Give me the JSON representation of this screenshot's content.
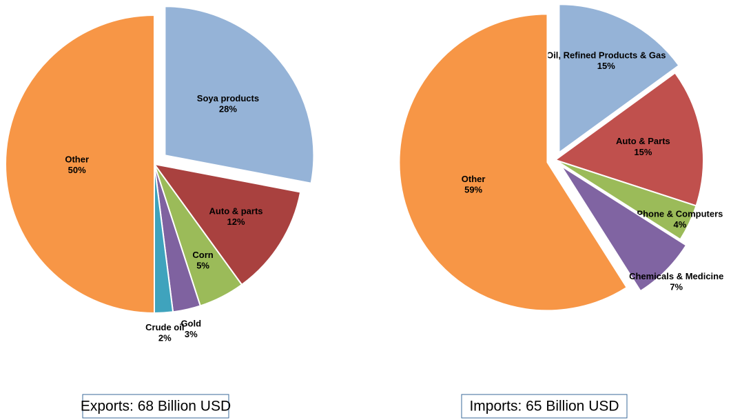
{
  "chart_data": [
    {
      "type": "pie",
      "title": "Exports: 68 Billion USD",
      "categories": [
        "Soya products",
        "Auto & parts",
        "Corn",
        "Gold",
        "Crude oil",
        "Other"
      ],
      "values": [
        28,
        12,
        5,
        3,
        2,
        50
      ],
      "value_labels": [
        "28%",
        "12%",
        "5%",
        "3%",
        "2%",
        "50%"
      ],
      "colors": [
        "#95b3d7",
        "#a9413f",
        "#9bbb59",
        "#7f62a0",
        "#3fa3bd",
        "#f79646"
      ],
      "explode": [
        true,
        false,
        false,
        false,
        false,
        false
      ]
    },
    {
      "type": "pie",
      "title": "Imports: 65 Billion USD",
      "categories": [
        "Oil, Refined Products & Gas",
        "Auto & Parts",
        "Phone & Computers",
        "Chemicals & Medicine",
        "Other"
      ],
      "values": [
        15,
        15,
        4,
        7,
        59
      ],
      "value_labels": [
        "15%",
        "15%",
        "4%",
        "7%",
        "59%"
      ],
      "colors": [
        "#95b3d7",
        "#c0504d",
        "#9bbb59",
        "#8064a2",
        "#f79646"
      ],
      "explode": [
        true,
        false,
        false,
        true,
        true
      ]
    }
  ]
}
